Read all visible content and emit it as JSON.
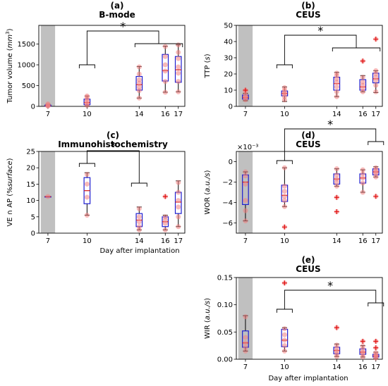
{
  "chart_data": [
    {
      "id": "a",
      "type": "boxplot",
      "panel_label": "(a)",
      "title": "B-mode",
      "ylabel_main": "Tumor volume (",
      "ylabel_unit_math": "mm",
      "ylabel_unit_sup": "3",
      "ylabel_tail": ")",
      "xlabel": "",
      "categories": [
        "7",
        "10",
        "14",
        "16",
        "17"
      ],
      "x": [
        7,
        10,
        14,
        16,
        17
      ],
      "ylim": [
        0,
        1950
      ],
      "yticks": [
        0,
        500,
        1000,
        1500
      ],
      "ytick_labels": [
        "0",
        "500",
        "1000",
        "1500"
      ],
      "shaded_day": 7,
      "boxes": [
        {
          "day": 7,
          "q1": 5,
          "median": 12,
          "q3": 30,
          "whisker_low": 0,
          "whisker_high": 50
        },
        {
          "day": 10,
          "q1": 40,
          "median": 90,
          "q3": 175,
          "whisker_low": 10,
          "whisker_high": 250
        },
        {
          "day": 14,
          "q1": 390,
          "median": 520,
          "q3": 720,
          "whisker_low": 200,
          "whisker_high": 960
        },
        {
          "day": 16,
          "q1": 610,
          "median": 860,
          "q3": 1250,
          "whisker_low": 340,
          "whisker_high": 1450
        },
        {
          "day": 17,
          "q1": 580,
          "median": 880,
          "q3": 1200,
          "whisker_low": 350,
          "whisker_high": 1480
        }
      ],
      "points": [
        [
          7,
          5
        ],
        [
          7,
          15
        ],
        [
          7,
          35
        ],
        [
          7,
          60
        ],
        [
          10,
          20
        ],
        [
          10,
          60
        ],
        [
          10,
          110
        ],
        [
          10,
          160
        ],
        [
          10,
          220
        ],
        [
          10,
          250
        ],
        [
          14,
          200
        ],
        [
          14,
          380
        ],
        [
          14,
          460
        ],
        [
          14,
          560
        ],
        [
          14,
          640
        ],
        [
          14,
          780
        ],
        [
          14,
          950
        ],
        [
          16,
          340
        ],
        [
          16,
          600
        ],
        [
          16,
          850
        ],
        [
          16,
          1000
        ],
        [
          16,
          1200
        ],
        [
          16,
          1440
        ],
        [
          17,
          350
        ],
        [
          17,
          600
        ],
        [
          17,
          800
        ],
        [
          17,
          950
        ],
        [
          17,
          1150
        ],
        [
          17,
          1300
        ],
        [
          17,
          1480
        ]
      ],
      "outliers": [],
      "significance": {
        "label": "*",
        "left": [
          10
        ],
        "right": [
          14,
          16,
          17
        ]
      }
    },
    {
      "id": "b",
      "type": "boxplot",
      "panel_label": "(b)",
      "title": "CEUS",
      "ylabel_main": "TTP (",
      "ylabel_unit_math": "s",
      "ylabel_unit_sup": "",
      "ylabel_tail": ")",
      "xlabel": "",
      "categories": [
        "7",
        "10",
        "14",
        "16",
        "17"
      ],
      "x": [
        7,
        10,
        14,
        16,
        17
      ],
      "ylim": [
        0,
        50
      ],
      "yticks": [
        0,
        10,
        20,
        30,
        40,
        50
      ],
      "ytick_labels": [
        "0",
        "10",
        "20",
        "30",
        "40",
        "50"
      ],
      "shaded_day": 7,
      "boxes": [
        {
          "day": 7,
          "q1": 4.5,
          "median": 5.5,
          "q3": 7,
          "whisker_low": 3.5,
          "whisker_high": 8
        },
        {
          "day": 10,
          "q1": 6.5,
          "median": 8,
          "q3": 9.5,
          "whisker_low": 3,
          "whisker_high": 12
        },
        {
          "day": 14,
          "q1": 10,
          "median": 14,
          "q3": 18,
          "whisker_low": 6,
          "whisker_high": 21
        },
        {
          "day": 16,
          "q1": 10,
          "median": 12,
          "q3": 16.5,
          "whisker_low": 9,
          "whisker_high": 19
        },
        {
          "day": 17,
          "q1": 14.5,
          "median": 17,
          "q3": 20.5,
          "whisker_low": 8.5,
          "whisker_high": 22
        }
      ],
      "points": [
        [
          7,
          4
        ],
        [
          7,
          5
        ],
        [
          7,
          6
        ],
        [
          7,
          7
        ],
        [
          7,
          9
        ],
        [
          10,
          4
        ],
        [
          10,
          6
        ],
        [
          10,
          7.5
        ],
        [
          10,
          8.5
        ],
        [
          10,
          10
        ],
        [
          10,
          11.5
        ],
        [
          14,
          6
        ],
        [
          14,
          9
        ],
        [
          14,
          12
        ],
        [
          14,
          15
        ],
        [
          14,
          17
        ],
        [
          14,
          19
        ],
        [
          14,
          20.5
        ],
        [
          16,
          9
        ],
        [
          16,
          11
        ],
        [
          16,
          13
        ],
        [
          16,
          15
        ],
        [
          16,
          18
        ],
        [
          17,
          9
        ],
        [
          17,
          13
        ],
        [
          17,
          16
        ],
        [
          17,
          18
        ],
        [
          17,
          20
        ],
        [
          17,
          22
        ]
      ],
      "outliers": [
        [
          7,
          10
        ],
        [
          16,
          28
        ],
        [
          17,
          41.5
        ]
      ],
      "significance": {
        "label": "*",
        "left": [
          10
        ],
        "right": [
          14,
          16,
          17
        ]
      }
    },
    {
      "id": "c",
      "type": "boxplot",
      "panel_label": "(c)",
      "title": "Immunohistochemistry",
      "ylabel_main": "VE ∩ AP (%",
      "ylabel_unit_math": "surface",
      "ylabel_unit_sup": "",
      "ylabel_tail": ")",
      "xlabel": "Day after implantation",
      "categories": [
        "7",
        "10",
        "14",
        "16",
        "17"
      ],
      "x": [
        7,
        10,
        14,
        16,
        17
      ],
      "ylim": [
        0,
        25
      ],
      "yticks": [
        0,
        5,
        10,
        15,
        20,
        25
      ],
      "ytick_labels": [
        "0",
        "5",
        "10",
        "15",
        "20",
        "25"
      ],
      "shaded_day": 7,
      "boxes": [
        {
          "day": 7,
          "q1": 11.2,
          "median": 11.2,
          "q3": 11.2,
          "whisker_low": 11.2,
          "whisker_high": 11.2
        },
        {
          "day": 10,
          "q1": 9,
          "median": 13,
          "q3": 17,
          "whisker_low": 5.5,
          "whisker_high": 18.5
        },
        {
          "day": 14,
          "q1": 2,
          "median": 4,
          "q3": 6,
          "whisker_low": 1,
          "whisker_high": 8
        },
        {
          "day": 16,
          "q1": 2,
          "median": 3.5,
          "q3": 5,
          "whisker_low": 1,
          "whisker_high": 5.5
        },
        {
          "day": 17,
          "q1": 6,
          "median": 9.5,
          "q3": 12.5,
          "whisker_low": 2,
          "whisker_high": 16
        }
      ],
      "points": [
        [
          7,
          11.2
        ],
        [
          10,
          5.5
        ],
        [
          10,
          11
        ],
        [
          10,
          15
        ],
        [
          10,
          18
        ],
        [
          14,
          1
        ],
        [
          14,
          2
        ],
        [
          14,
          3.5
        ],
        [
          14,
          5
        ],
        [
          14,
          7.5
        ],
        [
          16,
          1
        ],
        [
          16,
          3
        ],
        [
          16,
          4
        ],
        [
          16,
          5
        ],
        [
          17,
          2
        ],
        [
          17,
          5
        ],
        [
          17,
          8
        ],
        [
          17,
          10
        ],
        [
          17,
          12.5
        ],
        [
          17,
          15.5
        ]
      ],
      "outliers": [
        [
          16,
          11.2
        ]
      ],
      "significance": {
        "label": "*",
        "left": [
          10
        ],
        "right": [
          14
        ]
      }
    },
    {
      "id": "d",
      "type": "boxplot",
      "panel_label": "(d)",
      "title": "CEUS",
      "ylabel_main": "WOR (",
      "ylabel_unit_math": "a.u./s",
      "ylabel_unit_sup": "",
      "ylabel_tail": ")",
      "xlabel": "",
      "offset_label": "×10⁻³",
      "categories": [
        "7",
        "10",
        "14",
        "16",
        "17"
      ],
      "x": [
        7,
        10,
        14,
        16,
        17
      ],
      "ylim": [
        -7,
        1
      ],
      "yticks": [
        -6,
        -4,
        -2,
        0
      ],
      "ytick_labels": [
        "−6",
        "−4",
        "−2",
        "0"
      ],
      "shaded_day": 7,
      "boxes": [
        {
          "day": 7,
          "q1": -4.2,
          "median": -2,
          "q3": -1.3,
          "whisker_low": -5.8,
          "whisker_high": -1
        },
        {
          "day": 10,
          "q1": -3.9,
          "median": -3.3,
          "q3": -2.3,
          "whisker_low": -4.4,
          "whisker_high": -0.6
        },
        {
          "day": 14,
          "q1": -2.2,
          "median": -1.7,
          "q3": -1.2,
          "whisker_low": -2.4,
          "whisker_high": -0.7
        },
        {
          "day": 16,
          "q1": -2.1,
          "median": -1.6,
          "q3": -1.2,
          "whisker_low": -3,
          "whisker_high": -0.8
        },
        {
          "day": 17,
          "q1": -1.3,
          "median": -1.0,
          "q3": -0.7,
          "whisker_low": -1.5,
          "whisker_high": -0.5
        }
      ],
      "points": [
        [
          7,
          -5.8
        ],
        [
          7,
          -4.8
        ],
        [
          7,
          -3.8
        ],
        [
          7,
          -2.2
        ],
        [
          7,
          -1.4
        ],
        [
          7,
          -1
        ],
        [
          10,
          -4.4
        ],
        [
          10,
          -3.8
        ],
        [
          10,
          -3.4
        ],
        [
          10,
          -2.9
        ],
        [
          10,
          -2.4
        ],
        [
          10,
          -0.6
        ],
        [
          14,
          -2.4
        ],
        [
          14,
          -2.0
        ],
        [
          14,
          -1.7
        ],
        [
          14,
          -1.3
        ],
        [
          14,
          -0.7
        ],
        [
          16,
          -3.0
        ],
        [
          16,
          -2.1
        ],
        [
          16,
          -1.6
        ],
        [
          16,
          -1.2
        ],
        [
          16,
          -0.8
        ],
        [
          17,
          -1.5
        ],
        [
          17,
          -1.2
        ],
        [
          17,
          -1.0
        ],
        [
          17,
          -0.8
        ],
        [
          17,
          -0.6
        ]
      ],
      "outliers": [
        [
          10,
          -6.4
        ],
        [
          14,
          -3.5
        ],
        [
          14,
          -4.9
        ],
        [
          17,
          -3.4
        ]
      ],
      "significance": {
        "label": "*",
        "left": [
          10
        ],
        "right": [
          17
        ]
      }
    },
    {
      "id": "e",
      "type": "boxplot",
      "panel_label": "(e)",
      "title": "CEUS",
      "ylabel_main": "WIR (",
      "ylabel_unit_math": "a.u./s",
      "ylabel_unit_sup": "",
      "ylabel_tail": ")",
      "xlabel": "Day after implantation",
      "categories": [
        "7",
        "10",
        "14",
        "16",
        "17"
      ],
      "x": [
        7,
        10,
        14,
        16,
        17
      ],
      "ylim": [
        0,
        0.15
      ],
      "yticks": [
        0,
        0.05,
        0.1,
        0.15
      ],
      "ytick_labels": [
        "0.00",
        "0.05",
        "0.10",
        "0.15"
      ],
      "shaded_day": 7,
      "boxes": [
        {
          "day": 7,
          "q1": 0.022,
          "median": 0.03,
          "q3": 0.052,
          "whisker_low": 0.015,
          "whisker_high": 0.08
        },
        {
          "day": 10,
          "q1": 0.023,
          "median": 0.035,
          "q3": 0.055,
          "whisker_low": 0.015,
          "whisker_high": 0.058
        },
        {
          "day": 14,
          "q1": 0.01,
          "median": 0.016,
          "q3": 0.022,
          "whisker_low": 0.005,
          "whisker_high": 0.028
        },
        {
          "day": 16,
          "q1": 0.009,
          "median": 0.013,
          "q3": 0.019,
          "whisker_low": 0.004,
          "whisker_high": 0.025
        },
        {
          "day": 17,
          "q1": 0.004,
          "median": 0.006,
          "q3": 0.009,
          "whisker_low": 0.001,
          "whisker_high": 0.013
        }
      ],
      "points": [
        [
          7,
          0.015
        ],
        [
          7,
          0.022
        ],
        [
          7,
          0.03
        ],
        [
          7,
          0.04
        ],
        [
          7,
          0.078
        ],
        [
          10,
          0.015
        ],
        [
          10,
          0.025
        ],
        [
          10,
          0.035
        ],
        [
          10,
          0.045
        ],
        [
          10,
          0.056
        ],
        [
          14,
          0.005
        ],
        [
          14,
          0.01
        ],
        [
          14,
          0.015
        ],
        [
          14,
          0.02
        ],
        [
          14,
          0.026
        ],
        [
          16,
          0.004
        ],
        [
          16,
          0.009
        ],
        [
          16,
          0.013
        ],
        [
          16,
          0.018
        ],
        [
          16,
          0.024
        ],
        [
          17,
          0.002
        ],
        [
          17,
          0.004
        ],
        [
          17,
          0.006
        ],
        [
          17,
          0.009
        ],
        [
          17,
          0.012
        ]
      ],
      "outliers": [
        [
          10,
          0.14
        ],
        [
          14,
          0.058
        ],
        [
          16,
          0.033
        ],
        [
          17,
          0.033
        ],
        [
          17,
          0.021
        ]
      ],
      "significance": {
        "label": "*",
        "left": [
          10
        ],
        "right": [
          17
        ]
      }
    }
  ]
}
